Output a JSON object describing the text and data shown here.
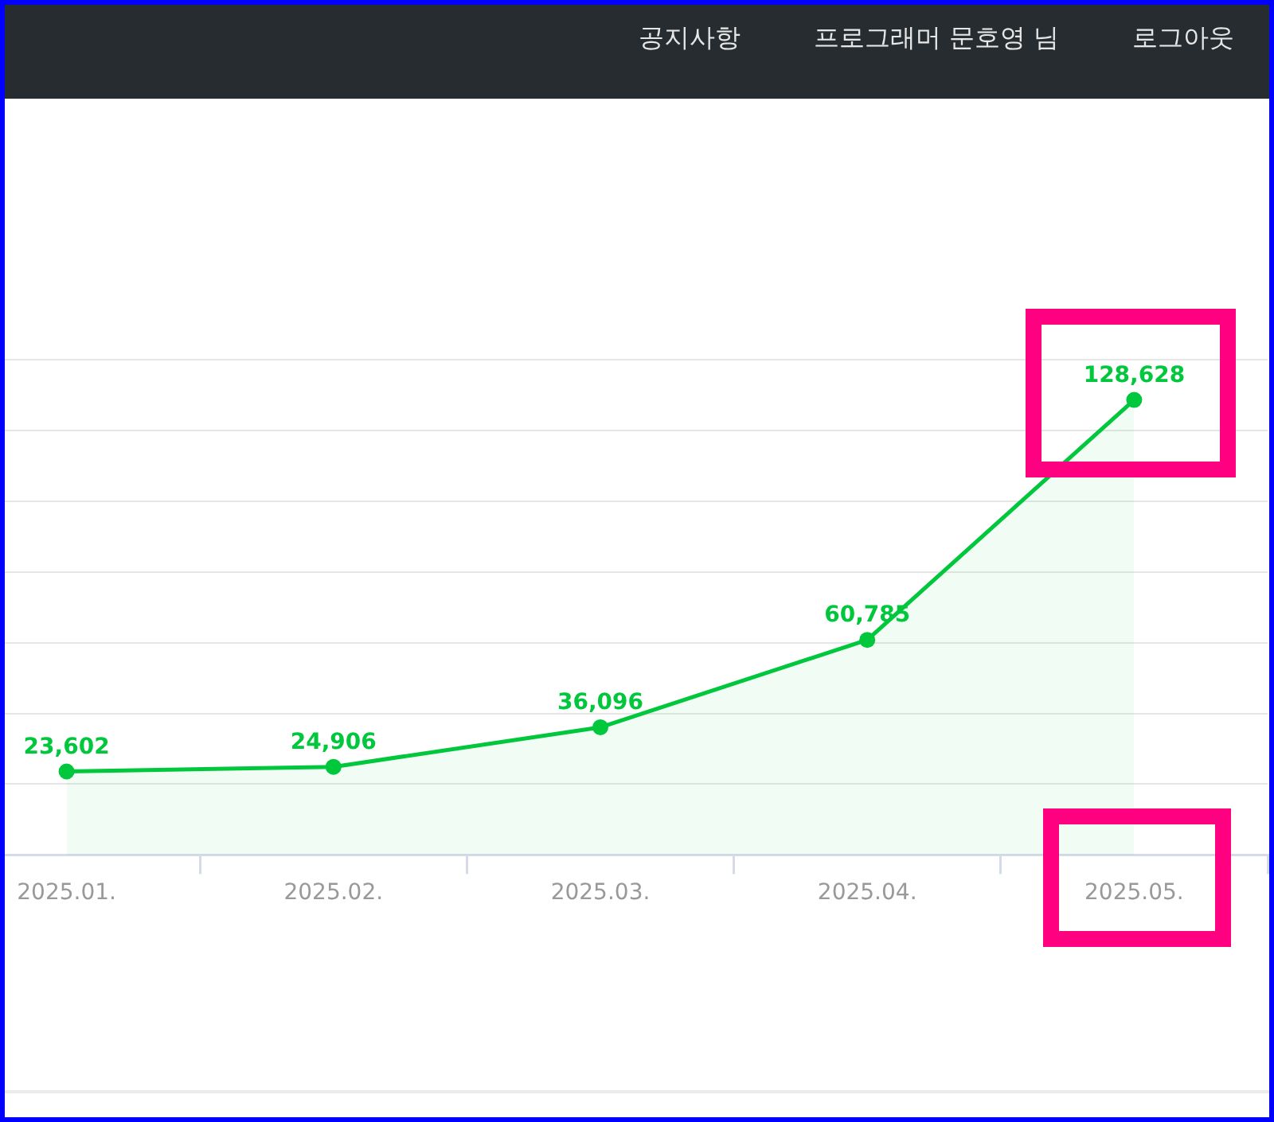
{
  "chart_data": {
    "type": "area",
    "categories": [
      "2025.01.",
      "2025.02.",
      "2025.03.",
      "2025.04.",
      "2025.05."
    ],
    "series": [
      {
        "color": "#00c73c",
        "values": [
          23602,
          24906,
          36096,
          60785,
          128628
        ],
        "value_labels": [
          "23,602",
          "24,906",
          "36,096",
          "60,785",
          "128,628"
        ]
      }
    ],
    "tick_labels": "x",
    "grid": "y",
    "marker": "circle",
    "annotations": [
      "공지사항",
      "프로그래머 문호영 님",
      "로그아웃"
    ]
  }
}
